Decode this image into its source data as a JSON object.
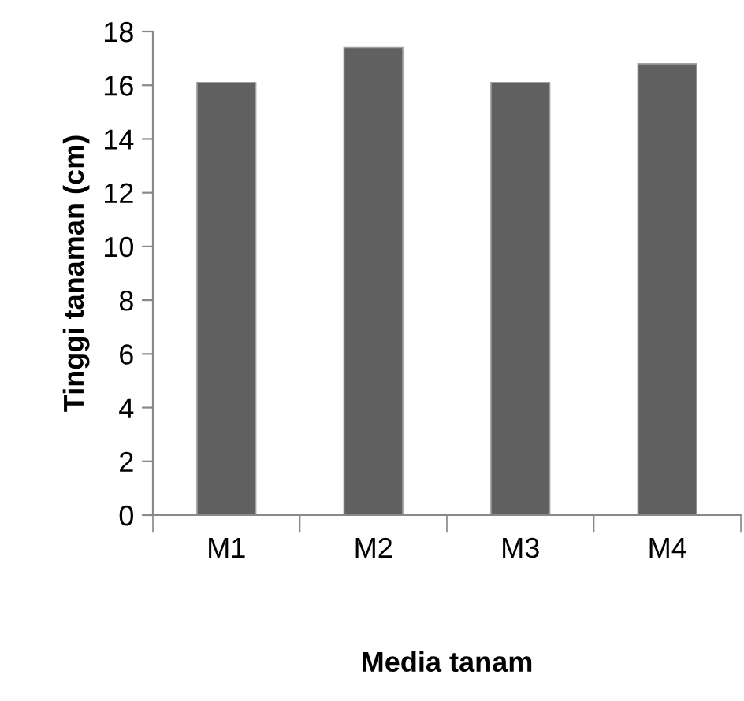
{
  "chart_data": {
    "type": "bar",
    "xlabel": "Media tanam",
    "ylabel": "Tinggi tanaman (cm)",
    "categories": [
      "M1",
      "M2",
      "M3",
      "M4"
    ],
    "values": [
      16.1,
      17.4,
      16.1,
      16.8
    ],
    "color": "#606060",
    "ylim": [
      0,
      18
    ],
    "yticks": [
      0,
      2,
      4,
      6,
      8,
      10,
      12,
      14,
      16,
      18
    ],
    "grid": false,
    "legend": false
  }
}
